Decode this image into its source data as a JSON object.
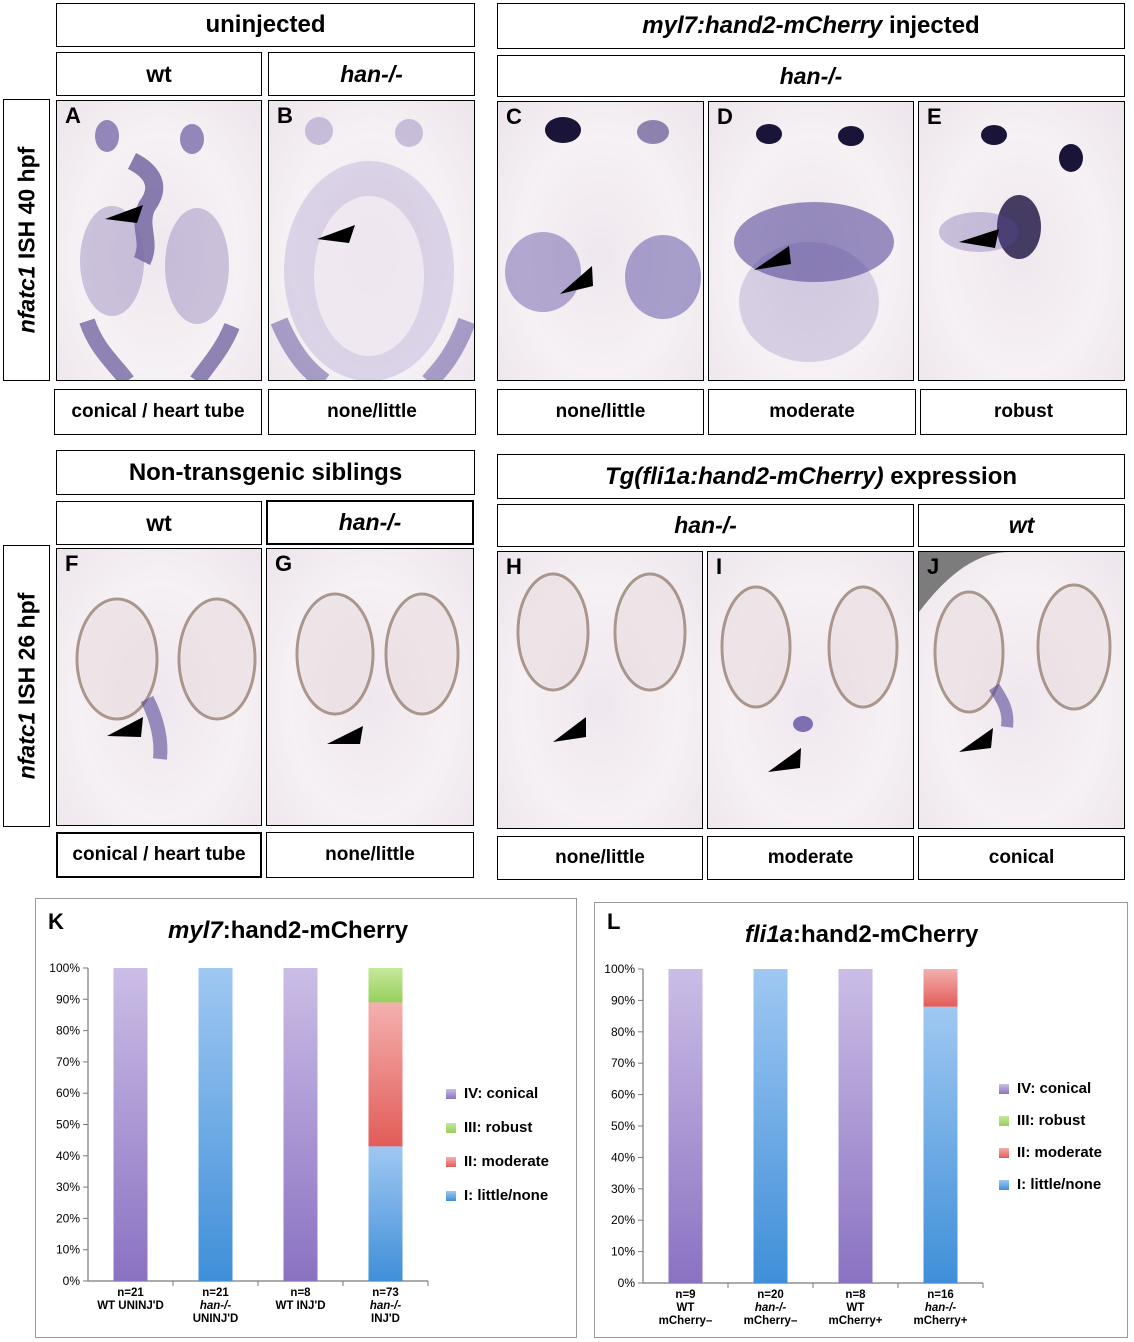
{
  "header": {
    "uninjected": "uninjected",
    "myl7_gene": "myl7:hand2-mCherry",
    "myl7_suffix": " injected",
    "nontransgenic": "Non-transgenic siblings",
    "tg_gene": "Tg(fli1a:hand2-mCherry)",
    "tg_suffix": " expression"
  },
  "genotype": {
    "wt_top": "wt",
    "han_top": "han-/-",
    "han_injected": "han-/-",
    "wt_bottom": "wt",
    "han_bottom": "han-/-",
    "han_tg": "han-/-",
    "wt_tg": "wt"
  },
  "side_labels": {
    "top_gene": "nfatc1",
    "top_rest": " ISH 40 hpf",
    "bottom_gene": "nfatc1",
    "bottom_rest": " ISH 26 hpf"
  },
  "panels": [
    "A",
    "B",
    "C",
    "D",
    "E",
    "F",
    "G",
    "H",
    "I",
    "J"
  ],
  "captions": {
    "A": "conical / heart tube",
    "B": "none/little",
    "C": "none/little",
    "D": "moderate",
    "E": "robust",
    "F": "conical / heart tube",
    "G": "none/little",
    "H": "none/little",
    "I": "moderate",
    "J": "conical"
  },
  "chart_data": [
    {
      "type": "bar",
      "stacked": true,
      "letter": "K",
      "title_italic": "myl7",
      "title_rest": ":hand2-mCherry",
      "y_ticks": [
        "0%",
        "10%",
        "20%",
        "30%",
        "40%",
        "50%",
        "60%",
        "70%",
        "80%",
        "90%",
        "100%"
      ],
      "ylim": [
        0,
        100
      ],
      "categories": [
        {
          "n": "n=21",
          "line1": "WT UNINJ'D",
          "line2": ""
        },
        {
          "n": "n=21",
          "line1": "han-/-",
          "line2": "UNINJ'D"
        },
        {
          "n": "n=8",
          "line1": "WT INJ'D",
          "line2": ""
        },
        {
          "n": "n=73",
          "line1": "han-/-",
          "line2": "INJ'D"
        }
      ],
      "series": [
        {
          "name": "I: little/none",
          "color_top": "#9fc8f2",
          "color_bottom": "#3f8fd8",
          "values": [
            0,
            100,
            0,
            43
          ]
        },
        {
          "name": "II: moderate",
          "color_top": "#f4b0ae",
          "color_bottom": "#e25c58",
          "values": [
            0,
            0,
            0,
            46
          ]
        },
        {
          "name": "III: robust",
          "color_top": "#c5e89c",
          "color_bottom": "#97cf5d",
          "values": [
            0,
            0,
            0,
            11
          ]
        },
        {
          "name": "IV: conical",
          "color_top": "#cbbde6",
          "color_bottom": "#8a72c2",
          "values": [
            100,
            0,
            100,
            0
          ]
        }
      ],
      "legend_order": [
        "IV: conical",
        "III: robust",
        "II: moderate",
        "I: little/none"
      ]
    },
    {
      "type": "bar",
      "stacked": true,
      "letter": "L",
      "title_italic": "fli1a",
      "title_rest": ":hand2-mCherry",
      "y_ticks": [
        "0%",
        "10%",
        "20%",
        "30%",
        "40%",
        "50%",
        "60%",
        "70%",
        "80%",
        "90%",
        "100%"
      ],
      "ylim": [
        0,
        100
      ],
      "categories": [
        {
          "n": "n=9",
          "line1": "WT",
          "line2": "mCherry–"
        },
        {
          "n": "n=20",
          "line1": "han-/-",
          "line2": "mCherry–"
        },
        {
          "n": "n=8",
          "line1": "WT",
          "line2": "mCherry+"
        },
        {
          "n": "n=16",
          "line1": "han-/-",
          "line2": "mCherry+"
        }
      ],
      "series": [
        {
          "name": "I: little/none",
          "color_top": "#9fc8f2",
          "color_bottom": "#3f8fd8",
          "values": [
            0,
            100,
            0,
            88
          ]
        },
        {
          "name": "II: moderate",
          "color_top": "#f4b0ae",
          "color_bottom": "#e25c58",
          "values": [
            0,
            0,
            0,
            12
          ]
        },
        {
          "name": "III: robust",
          "color_top": "#c5e89c",
          "color_bottom": "#97cf5d",
          "values": [
            0,
            0,
            0,
            0
          ]
        },
        {
          "name": "IV: conical",
          "color_top": "#cbbde6",
          "color_bottom": "#8a72c2",
          "values": [
            100,
            0,
            100,
            0
          ]
        }
      ],
      "legend_order": [
        "IV: conical",
        "III: robust",
        "II: moderate",
        "I: little/none"
      ]
    }
  ]
}
